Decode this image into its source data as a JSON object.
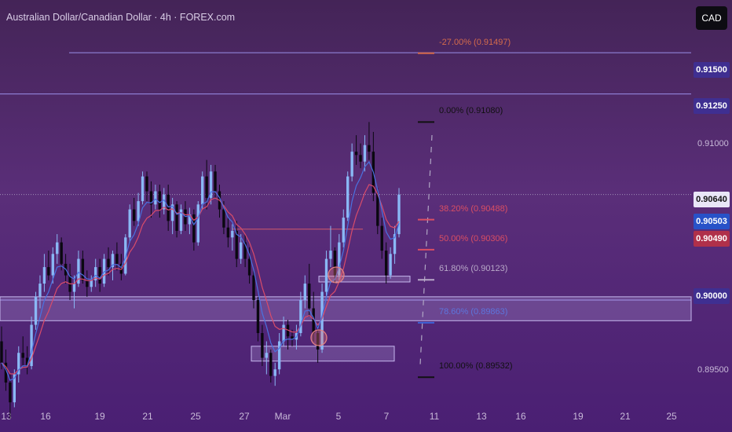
{
  "header": {
    "title": "Australian Dollar/Canadian Dollar · 4h · FOREX.com"
  },
  "currency_button": {
    "label": "CAD"
  },
  "price_badges": [
    {
      "text": "0.91500",
      "bg": "#3f2f91",
      "fg": "#ffffff"
    },
    {
      "text": "0.91250",
      "bg": "#3f2f91",
      "fg": "#ffffff"
    },
    {
      "text": "0.90640",
      "bg": "#e9e6f7",
      "fg": "#111111"
    },
    {
      "text": "0.90503",
      "bg": "#2852c8",
      "fg": "#ffffff"
    },
    {
      "text": "0.90490",
      "bg": "#b0304a",
      "fg": "#ffffff"
    },
    {
      "text": "0.90000",
      "bg": "#3f2f91",
      "fg": "#ffffff"
    }
  ],
  "fib_levels": [
    {
      "text": "-27.00% (0.91497)",
      "color": "#d46a4c",
      "price": 0.91497
    },
    {
      "text": "0.00% (0.91080)",
      "color": "#111111",
      "price": 0.9108
    },
    {
      "text": "38.20% (0.90488)",
      "color": "#d94e63",
      "price": 0.90488
    },
    {
      "text": "50.00% (0.90306)",
      "color": "#d94e63",
      "price": 0.90306
    },
    {
      "text": "61.80% (0.90123)",
      "color": "#b8a8c8",
      "price": 0.90123
    },
    {
      "text": "78.60% (0.89863)",
      "color": "#3f62d8",
      "price": 0.89863
    },
    {
      "text": "100.00% (0.89532)",
      "color": "#111111",
      "price": 0.89532
    }
  ],
  "colors": {
    "background_top": "#442457",
    "background_bottom": "#4a1f73",
    "candle_up": "#8ab8f5",
    "candle_down": "#0a0810",
    "ma_fast": "#4a72e0",
    "ma_slow": "#d84c6a",
    "level_line": "#9a8ee8"
  },
  "chart_data": {
    "type": "candlestick",
    "symbol": "Australian Dollar/Canadian Dollar",
    "timeframe": "4h",
    "broker": "FOREX.com",
    "x_tick_labels": [
      "13",
      "16",
      "19",
      "21",
      "25",
      "27",
      "Mar",
      "5",
      "7",
      "11",
      "13",
      "16",
      "19",
      "21",
      "25"
    ],
    "y_tick_labels": [
      "0.91000",
      "0.89500"
    ],
    "y_range": [
      0.892,
      0.9182
    ],
    "last_price": 0.9064,
    "horizontal_levels": [
      0.915,
      0.9125,
      0.9
    ],
    "moving_averages": [
      {
        "color": "blue",
        "last_value": 0.90503
      },
      {
        "color": "red",
        "last_value": 0.9049
      }
    ],
    "fibonacci_retracement": {
      "high": 0.9108,
      "low": 0.89532,
      "levels": [
        {
          "ratio": -0.27,
          "price": 0.91497
        },
        {
          "ratio": 0,
          "price": 0.9108
        },
        {
          "ratio": 0.382,
          "price": 0.90488
        },
        {
          "ratio": 0.5,
          "price": 0.90306
        },
        {
          "ratio": 0.618,
          "price": 0.90123
        },
        {
          "ratio": 0.786,
          "price": 0.89863
        },
        {
          "ratio": 1,
          "price": 0.89532
        }
      ]
    },
    "support_zones": [
      {
        "from_price": 0.9002,
        "to_price": 0.89875
      },
      {
        "from_price": 0.8972,
        "to_price": 0.8963
      },
      {
        "from_price": 0.90145,
        "to_price": 0.9011
      }
    ],
    "resistance_line": 0.9043,
    "candles": [
      [
        0.8975,
        0.8984,
        0.8958,
        0.8962
      ],
      [
        0.8962,
        0.897,
        0.8945,
        0.895
      ],
      [
        0.895,
        0.8955,
        0.8928,
        0.8938
      ],
      [
        0.8938,
        0.8958,
        0.8935,
        0.8955
      ],
      [
        0.8955,
        0.8972,
        0.895,
        0.8968
      ],
      [
        0.8968,
        0.8978,
        0.896,
        0.8965
      ],
      [
        0.8965,
        0.8972,
        0.8955,
        0.896
      ],
      [
        0.896,
        0.899,
        0.8958,
        0.8985
      ],
      [
        0.8985,
        0.9005,
        0.8982,
        0.9002
      ],
      [
        0.9002,
        0.9015,
        0.8995,
        0.901
      ],
      [
        0.901,
        0.9028,
        0.9005,
        0.902
      ],
      [
        0.902,
        0.903,
        0.9012,
        0.9015
      ],
      [
        0.9015,
        0.9032,
        0.901,
        0.9028
      ],
      [
        0.9028,
        0.904,
        0.9022,
        0.9035
      ],
      [
        0.9035,
        0.9038,
        0.9018,
        0.9022
      ],
      [
        0.9022,
        0.9028,
        0.901,
        0.9015
      ],
      [
        0.9015,
        0.9022,
        0.9,
        0.9005
      ],
      [
        0.9005,
        0.9015,
        0.8995,
        0.901
      ],
      [
        0.901,
        0.903,
        0.9008,
        0.9025
      ],
      [
        0.9025,
        0.903,
        0.901,
        0.9012
      ],
      [
        0.9012,
        0.9018,
        0.9002,
        0.9008
      ],
      [
        0.9008,
        0.9015,
        0.9005,
        0.9012
      ],
      [
        0.9012,
        0.9025,
        0.9008,
        0.902
      ],
      [
        0.902,
        0.9025,
        0.9005,
        0.901
      ],
      [
        0.901,
        0.9028,
        0.9008,
        0.9025
      ],
      [
        0.9025,
        0.9032,
        0.9015,
        0.902
      ],
      [
        0.902,
        0.903,
        0.9012,
        0.9028
      ],
      [
        0.9028,
        0.9035,
        0.9018,
        0.9022
      ],
      [
        0.9022,
        0.9028,
        0.9012,
        0.9016
      ],
      [
        0.9016,
        0.904,
        0.9015,
        0.9038
      ],
      [
        0.9038,
        0.9058,
        0.9035,
        0.9055
      ],
      [
        0.9055,
        0.9062,
        0.9045,
        0.9048
      ],
      [
        0.9048,
        0.9065,
        0.9045,
        0.906
      ],
      [
        0.906,
        0.9078,
        0.9058,
        0.9075
      ],
      [
        0.9075,
        0.9078,
        0.906,
        0.9066
      ],
      [
        0.9066,
        0.9072,
        0.905,
        0.9058
      ],
      [
        0.9058,
        0.907,
        0.9055,
        0.9066
      ],
      [
        0.9066,
        0.907,
        0.905,
        0.9055
      ],
      [
        0.9055,
        0.9068,
        0.9052,
        0.9064
      ],
      [
        0.9064,
        0.907,
        0.9042,
        0.9048
      ],
      [
        0.9048,
        0.9062,
        0.904,
        0.9058
      ],
      [
        0.9058,
        0.906,
        0.9038,
        0.9042
      ],
      [
        0.9042,
        0.9058,
        0.904,
        0.9055
      ],
      [
        0.9055,
        0.906,
        0.9042,
        0.9046
      ],
      [
        0.9046,
        0.9056,
        0.904,
        0.9052
      ],
      [
        0.9052,
        0.9055,
        0.903,
        0.9035
      ],
      [
        0.9035,
        0.906,
        0.9033,
        0.9058
      ],
      [
        0.9058,
        0.9078,
        0.9055,
        0.9075
      ],
      [
        0.9075,
        0.9085,
        0.9055,
        0.9062
      ],
      [
        0.9062,
        0.9082,
        0.9058,
        0.9078
      ],
      [
        0.9078,
        0.9082,
        0.9062,
        0.9066
      ],
      [
        0.9066,
        0.907,
        0.905,
        0.9055
      ],
      [
        0.9055,
        0.906,
        0.904,
        0.9044
      ],
      [
        0.9044,
        0.905,
        0.9032,
        0.9038
      ],
      [
        0.9038,
        0.9046,
        0.903,
        0.9042
      ],
      [
        0.9042,
        0.9048,
        0.902,
        0.9025
      ],
      [
        0.9025,
        0.904,
        0.9022,
        0.9035
      ],
      [
        0.9035,
        0.904,
        0.902,
        0.9025
      ],
      [
        0.9025,
        0.9032,
        0.901,
        0.9015
      ],
      [
        0.9015,
        0.9018,
        0.8995,
        0.9
      ],
      [
        0.9,
        0.9002,
        0.8975,
        0.898
      ],
      [
        0.898,
        0.8985,
        0.896,
        0.8965
      ],
      [
        0.8965,
        0.8975,
        0.8955,
        0.8968
      ],
      [
        0.8968,
        0.897,
        0.895,
        0.8954
      ],
      [
        0.8954,
        0.8962,
        0.8948,
        0.8958
      ],
      [
        0.8958,
        0.898,
        0.8955,
        0.8975
      ],
      [
        0.8975,
        0.899,
        0.8972,
        0.8985
      ],
      [
        0.8985,
        0.8988,
        0.897,
        0.8978
      ],
      [
        0.8978,
        0.8982,
        0.8972,
        0.8976
      ],
      [
        0.8976,
        0.8985,
        0.897,
        0.898
      ],
      [
        0.898,
        0.9005,
        0.8978,
        0.9
      ],
      [
        0.9,
        0.9015,
        0.8995,
        0.901
      ],
      [
        0.901,
        0.9022,
        0.899,
        0.8995
      ],
      [
        0.8995,
        0.9005,
        0.8975,
        0.898
      ],
      [
        0.898,
        0.8985,
        0.8962,
        0.897
      ],
      [
        0.897,
        0.901,
        0.8968,
        0.9005
      ],
      [
        0.9005,
        0.903,
        0.9002,
        0.9025
      ],
      [
        0.9025,
        0.9045,
        0.902,
        0.903
      ],
      [
        0.903,
        0.9032,
        0.901,
        0.9015
      ],
      [
        0.9015,
        0.904,
        0.9012,
        0.9035
      ],
      [
        0.9035,
        0.9055,
        0.9032,
        0.905
      ],
      [
        0.905,
        0.9078,
        0.9048,
        0.9075
      ],
      [
        0.9075,
        0.9095,
        0.9072,
        0.909
      ],
      [
        0.909,
        0.91,
        0.9082,
        0.9088
      ],
      [
        0.9088,
        0.9095,
        0.908,
        0.9084
      ],
      [
        0.9084,
        0.91,
        0.9078,
        0.9094
      ],
      [
        0.9094,
        0.9108,
        0.9085,
        0.909
      ],
      [
        0.909,
        0.9102,
        0.906,
        0.9065
      ],
      [
        0.9065,
        0.9068,
        0.904,
        0.9045
      ],
      [
        0.9045,
        0.905,
        0.9025,
        0.903
      ],
      [
        0.903,
        0.9035,
        0.901,
        0.9015
      ],
      [
        0.9015,
        0.9032,
        0.9013,
        0.9028
      ],
      [
        0.9028,
        0.9045,
        0.9022,
        0.904
      ],
      [
        0.904,
        0.9068,
        0.9038,
        0.9064
      ]
    ]
  }
}
